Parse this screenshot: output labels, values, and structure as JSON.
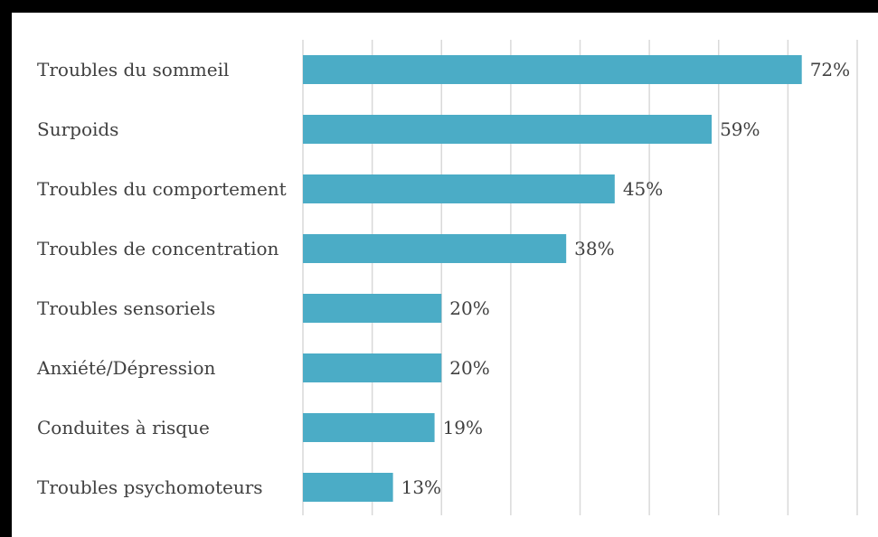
{
  "chart_data": {
    "type": "bar",
    "orientation": "horizontal",
    "categories": [
      "Troubles du sommeil",
      "Surpoids",
      "Troubles du comportement",
      "Troubles de concentration",
      "Troubles sensoriels",
      "Anxiété/Dépression",
      "Conduites à risque",
      "Troubles psychomoteurs"
    ],
    "values": [
      72,
      59,
      45,
      38,
      20,
      20,
      19,
      13
    ],
    "value_labels": [
      "72%",
      "59%",
      "45%",
      "38%",
      "20%",
      "20%",
      "19%",
      "13%"
    ],
    "xlim": [
      0,
      80
    ],
    "grid": true,
    "bar_color": "#4BACC6",
    "text_color": "#404040",
    "gridline_color": "#D9D9D9"
  }
}
